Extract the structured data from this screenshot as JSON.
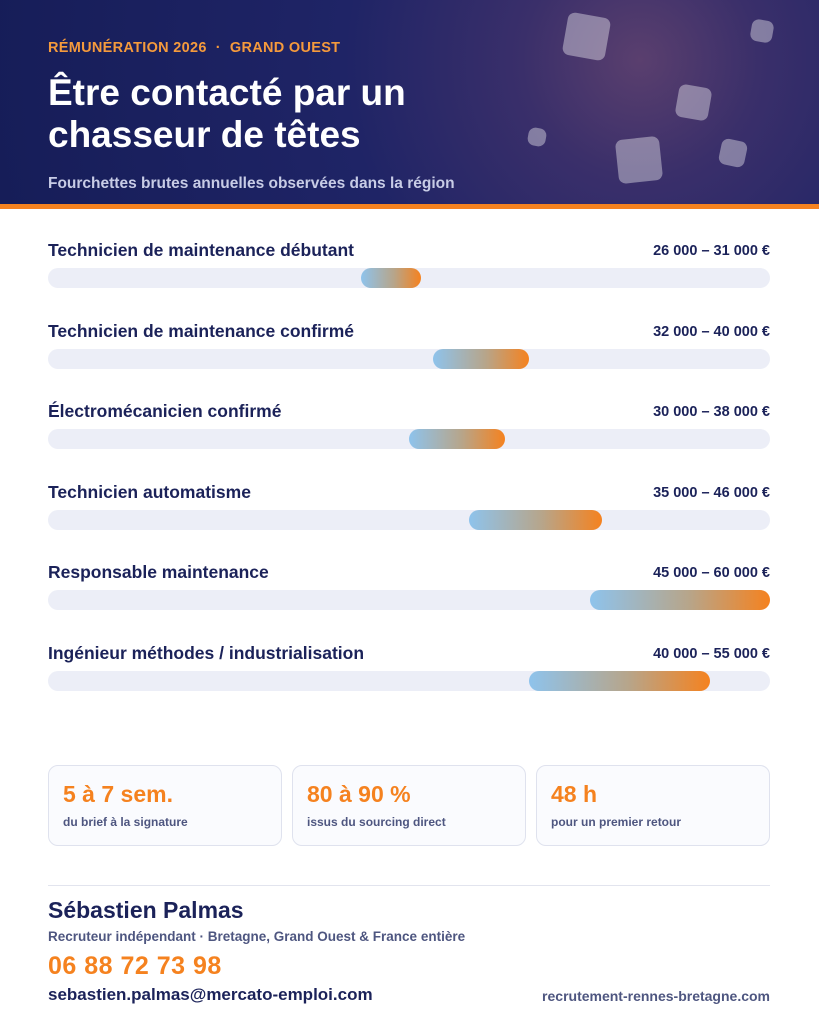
{
  "header": {
    "kicker_left": "RÉMUNÉRATION 2026",
    "kicker_sep": "·",
    "kicker_right": "GRAND OUEST",
    "title_line1": "Être contacté par un",
    "title_line2": "chasseur de têtes",
    "subtitle": "Fourchettes brutes annuelles observées dans la région"
  },
  "salaries": [
    {
      "label": "Technicien de maintenance débutant",
      "range": "26 000 – 31 000 €",
      "min": 26000,
      "max": 31000
    },
    {
      "label": "Technicien de maintenance confirmé",
      "range": "32 000 – 40 000 €",
      "min": 32000,
      "max": 40000
    },
    {
      "label": "Électromécanicien confirmé",
      "range": "30 000 – 38 000 €",
      "min": 30000,
      "max": 38000
    },
    {
      "label": "Technicien automatisme",
      "range": "35 000 – 46 000 €",
      "min": 35000,
      "max": 46000
    },
    {
      "label": "Responsable maintenance",
      "range": "45 000 – 60 000 €",
      "min": 45000,
      "max": 60000
    },
    {
      "label": "Ingénieur méthodes / industrialisation",
      "range": "40 000 – 55 000 €",
      "min": 40000,
      "max": 55000
    }
  ],
  "scale": {
    "min": 0,
    "max": 60000
  },
  "stats": [
    {
      "value": "5 à 7 sem.",
      "caption": "du brief à la signature"
    },
    {
      "value": "80 à 90 %",
      "caption": "issus du sourcing direct"
    },
    {
      "value": "48 h",
      "caption": "pour un premier retour"
    }
  ],
  "contact": {
    "name": "Sébastien Palmas",
    "role": "Recruteur indépendant · Bretagne, Grand Ouest & France entière",
    "phone": "06 88 72 73 98",
    "email": "sebastien.palmas@mercato-emploi.com",
    "website": "recrutement-rennes-bretagne.com"
  },
  "colors": {
    "navy": "#1b2259",
    "accent": "#f5821f",
    "bar_start": "#8ec3ec",
    "track": "#eceef7"
  }
}
